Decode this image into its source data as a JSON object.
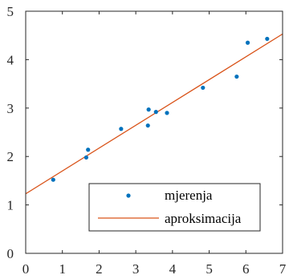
{
  "chart_data": {
    "type": "scatter",
    "title": "",
    "xlabel": "",
    "ylabel": "",
    "xlim": [
      0,
      7
    ],
    "ylim": [
      0,
      5
    ],
    "xticks": [
      0,
      1,
      2,
      3,
      4,
      5,
      6,
      7
    ],
    "yticks": [
      0,
      1,
      2,
      3,
      4,
      5
    ],
    "grid": false,
    "legend_position": "bottom-right",
    "series": [
      {
        "name": "mjerenja",
        "type": "scatter",
        "color": "#0072BD",
        "points": [
          {
            "x": 0.75,
            "y": 1.52
          },
          {
            "x": 1.65,
            "y": 1.98
          },
          {
            "x": 1.7,
            "y": 2.14
          },
          {
            "x": 2.6,
            "y": 2.57
          },
          {
            "x": 3.33,
            "y": 2.64
          },
          {
            "x": 3.35,
            "y": 2.97
          },
          {
            "x": 3.55,
            "y": 2.92
          },
          {
            "x": 3.85,
            "y": 2.9
          },
          {
            "x": 4.83,
            "y": 3.42
          },
          {
            "x": 5.75,
            "y": 3.65
          },
          {
            "x": 6.05,
            "y": 4.35
          },
          {
            "x": 6.58,
            "y": 4.43
          }
        ]
      },
      {
        "name": "aproksimacija",
        "type": "line",
        "color": "#D95319",
        "points": [
          {
            "x": 0,
            "y": 1.23
          },
          {
            "x": 7,
            "y": 4.53
          }
        ]
      }
    ]
  }
}
